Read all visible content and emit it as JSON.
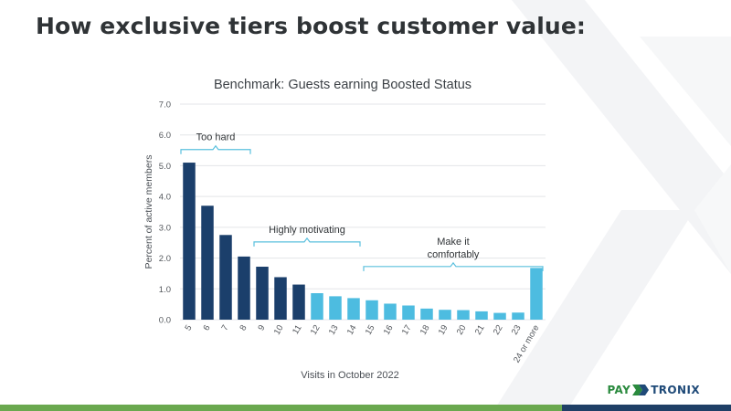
{
  "slide": {
    "title": "How exclusive tiers boost customer value:"
  },
  "logo": {
    "text_pay": "PAY",
    "text_tronix": "TRONIX",
    "brand_green": "#2a8a3e",
    "brand_blue": "#1f4a78"
  },
  "colors": {
    "dark_bar": "#1b3f6b",
    "light_bar": "#4dbce0",
    "bracket": "#5bc0de",
    "footer_green": "#6aa84f",
    "footer_blue": "#1f3f66"
  },
  "chart_data": {
    "type": "bar",
    "title": "Benchmark: Guests earning Boosted Status",
    "xlabel": "Visits in October 2022",
    "ylabel": "Percent of active members",
    "ylim": [
      0,
      7
    ],
    "yticks": [
      "0.0",
      "1.0",
      "2.0",
      "3.0",
      "4.0",
      "5.0",
      "6.0",
      "7.0"
    ],
    "grid": true,
    "categories": [
      "5",
      "6",
      "7",
      "8",
      "9",
      "10",
      "11",
      "12",
      "13",
      "14",
      "15",
      "16",
      "17",
      "18",
      "19",
      "20",
      "21",
      "22",
      "23",
      "24 or more"
    ],
    "values": [
      5.1,
      3.7,
      2.75,
      2.05,
      1.72,
      1.38,
      1.14,
      0.86,
      0.76,
      0.7,
      0.63,
      0.52,
      0.46,
      0.36,
      0.32,
      0.31,
      0.27,
      0.22,
      0.23,
      1.68
    ],
    "bar_groups": [
      "dark",
      "dark",
      "dark",
      "dark",
      "dark",
      "dark",
      "dark",
      "light",
      "light",
      "light",
      "light",
      "light",
      "light",
      "light",
      "light",
      "light",
      "light",
      "light",
      "light",
      "light"
    ],
    "annotations": [
      {
        "text": "Too hard",
        "from": "5",
        "to": "8",
        "level": 6.0
      },
      {
        "text": "Highly motivating",
        "from": "9",
        "to": "14",
        "level": 3.0
      },
      {
        "text": "Make it comfortably",
        "lines": [
          "Make it",
          "comfortably"
        ],
        "from": "15",
        "to": "24 or more",
        "level": 2.2
      }
    ]
  }
}
